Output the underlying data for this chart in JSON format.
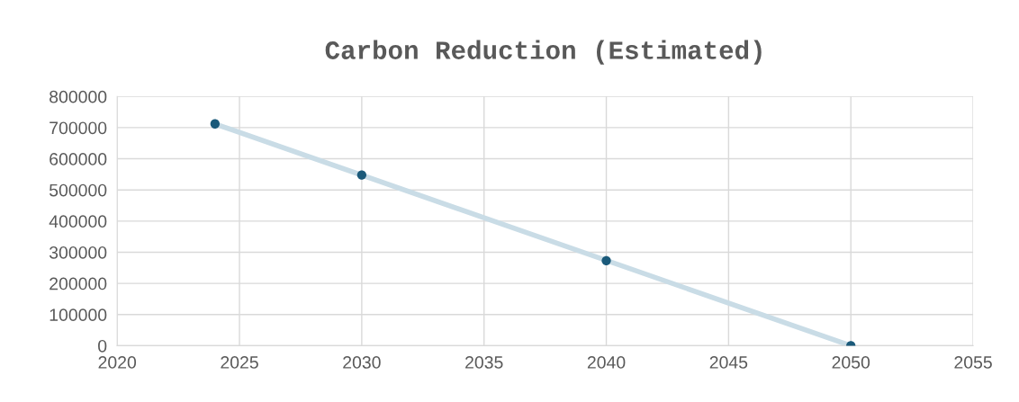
{
  "chart_data": {
    "type": "scatter",
    "title": "Carbon Reduction (Estimated)",
    "x": [
      2024,
      2030,
      2040,
      2050
    ],
    "series": [
      {
        "type": "line",
        "marker": "none",
        "color": "#c9dce6",
        "x": [
          2024,
          2050
        ],
        "values": [
          712000,
          0
        ]
      },
      {
        "marker": "circle",
        "color": "#1b5a7a",
        "values": [
          712000,
          548000,
          273000,
          0
        ]
      }
    ],
    "xlim": [
      2020,
      2055
    ],
    "xticks": [
      2020,
      2025,
      2030,
      2035,
      2040,
      2045,
      2050,
      2055
    ],
    "ylim": [
      0,
      800000
    ],
    "yticks": [
      0,
      100000,
      200000,
      300000,
      400000,
      500000,
      600000,
      700000,
      800000
    ],
    "grid": true,
    "legend": false
  }
}
